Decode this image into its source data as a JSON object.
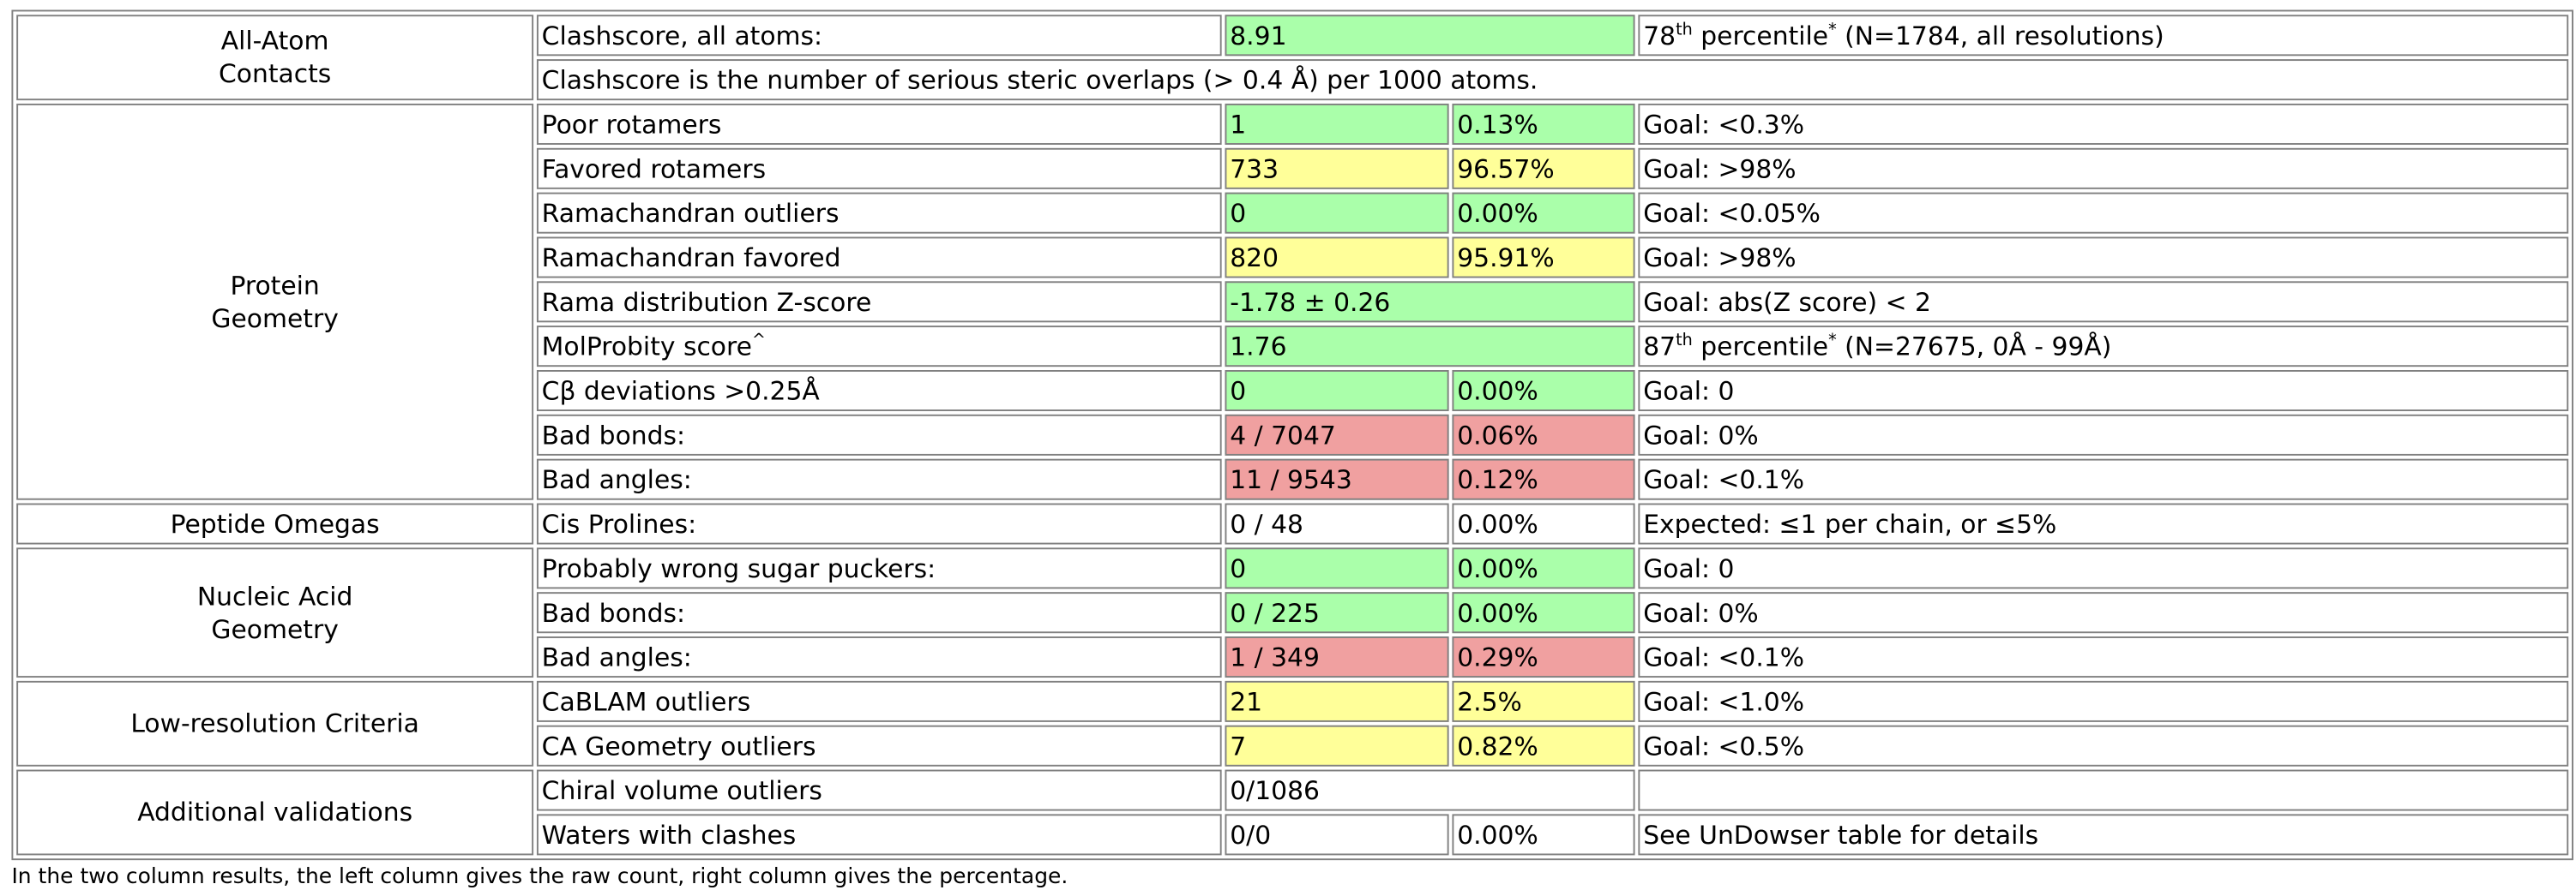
{
  "categories": {
    "all_atom": [
      "All-Atom",
      "Contacts"
    ],
    "protein": [
      "Protein",
      "Geometry"
    ],
    "omegas": "Peptide Omegas",
    "nucleic": [
      "Nucleic Acid",
      "Geometry"
    ],
    "lowres": "Low-resolution Criteria",
    "additional": "Additional validations"
  },
  "clashscore": {
    "label": "Clashscore, all atoms:",
    "value": "8.91",
    "percentile_num": "78",
    "percentile_sup": "th",
    "percentile_word": " percentile",
    "star": "*",
    "percentile_tail": " (N=1784, all resolutions)",
    "note": "Clashscore is the number of serious steric overlaps (> 0.4 Å) per 1000 atoms."
  },
  "protein": {
    "poor_rotamers": {
      "label": "Poor rotamers",
      "count": "1",
      "pct": "0.13%",
      "goal": "Goal: <0.3%",
      "status": "good"
    },
    "favored_rotamers": {
      "label": "Favored rotamers",
      "count": "733",
      "pct": "96.57%",
      "goal": "Goal: >98%",
      "status": "warn"
    },
    "rama_outliers": {
      "label": "Ramachandran outliers",
      "count": "0",
      "pct": "0.00%",
      "goal": "Goal: <0.05%",
      "status": "good"
    },
    "rama_favored": {
      "label": "Ramachandran favored",
      "count": "820",
      "pct": "95.91%",
      "goal": "Goal: >98%",
      "status": "warn"
    },
    "rama_z": {
      "label": "Rama distribution Z-score",
      "value": "-1.78 ± 0.26",
      "goal": "Goal: abs(Z score) < 2",
      "status": "good"
    },
    "molprobity": {
      "label": "MolProbity score",
      "label_sup": "^",
      "value": "1.76",
      "percentile_num": "87",
      "percentile_sup": "th",
      "percentile_word": " percentile",
      "star": "*",
      "percentile_tail": " (N=27675, 0Å - 99Å)",
      "status": "good"
    },
    "cbeta": {
      "label": "Cβ deviations >0.25Å",
      "count": "0",
      "pct": "0.00%",
      "goal": "Goal: 0",
      "status": "good"
    },
    "bad_bonds": {
      "label": "Bad bonds:",
      "count": "4 / 7047",
      "pct": "0.06%",
      "goal": "Goal: 0%",
      "status": "bad"
    },
    "bad_angles": {
      "label": "Bad angles:",
      "count": "11 / 9543",
      "pct": "0.12%",
      "goal": "Goal: <0.1%",
      "status": "bad"
    }
  },
  "omegas": {
    "cis_prolines": {
      "label": "Cis Prolines:",
      "count": "0 / 48",
      "pct": "0.00%",
      "goal": "Expected: ≤1 per chain, or ≤5%"
    }
  },
  "nucleic": {
    "sugar": {
      "label": "Probably wrong sugar puckers:",
      "count": "0",
      "pct": "0.00%",
      "goal": "Goal: 0",
      "status": "good"
    },
    "bad_bonds": {
      "label": "Bad bonds:",
      "count": "0 / 225",
      "pct": "0.00%",
      "goal": "Goal: 0%",
      "status": "good"
    },
    "bad_angles": {
      "label": "Bad angles:",
      "count": "1 / 349",
      "pct": "0.29%",
      "goal": "Goal: <0.1%",
      "status": "bad"
    }
  },
  "lowres": {
    "cablam": {
      "label": "CaBLAM outliers",
      "count": "21",
      "pct": "2.5%",
      "goal": "Goal: <1.0%",
      "status": "warn"
    },
    "ca_geom": {
      "label": "CA Geometry outliers",
      "count": "7",
      "pct": "0.82%",
      "goal": "Goal: <0.5%",
      "status": "warn"
    }
  },
  "additional": {
    "chiral": {
      "label": "Chiral volume outliers",
      "value": "0/1086",
      "goal": ""
    },
    "waters": {
      "label": "Waters with clashes",
      "count": "0/0",
      "pct": "0.00%",
      "goal": "See UnDowser table for details"
    }
  },
  "colors": {
    "good": "#aaffaa",
    "warn": "#ffff99",
    "bad": "#f0a0a0"
  },
  "footnote": "In the two column results, the left column gives the raw count, right column gives the percentage."
}
